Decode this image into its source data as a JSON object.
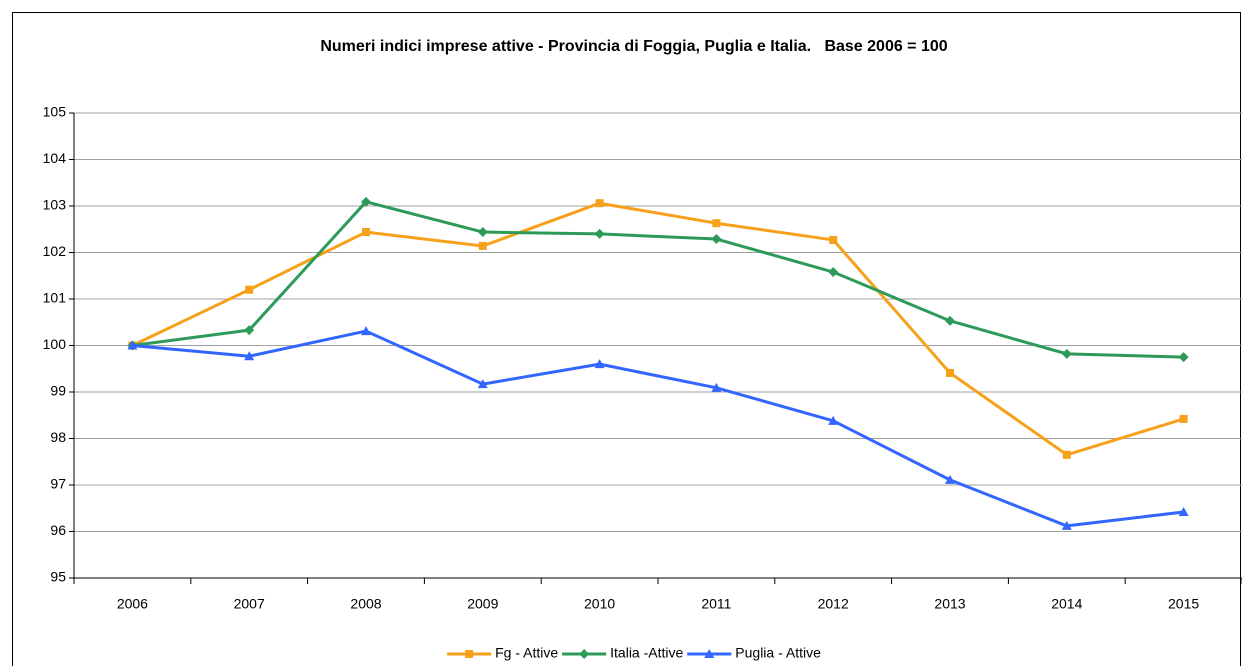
{
  "chart_data": {
    "type": "line",
    "title": "Numeri indici imprese attive - Provincia di Foggia, Puglia e Italia.   Base 2006 = 100",
    "categories": [
      "2006",
      "2007",
      "2008",
      "2009",
      "2010",
      "2011",
      "2012",
      "2013",
      "2014",
      "2015"
    ],
    "series": [
      {
        "name": "Fg - Attive",
        "color": "#f7a11a",
        "marker": "square",
        "values": [
          100,
          101.2,
          102.44,
          102.14,
          103.06,
          102.63,
          102.27,
          99.41,
          97.65,
          98.42
        ]
      },
      {
        "name": "Italia -Attive",
        "color": "#2e9a5a",
        "marker": "diamond",
        "values": [
          100,
          100.33,
          103.09,
          102.44,
          102.4,
          102.29,
          101.58,
          100.53,
          99.82,
          99.75
        ]
      },
      {
        "name": "Puglia - Attive",
        "color": "#3366ff",
        "marker": "triangle",
        "values": [
          100,
          99.77,
          100.31,
          99.17,
          99.6,
          99.09,
          98.38,
          97.11,
          96.12,
          96.42
        ]
      }
    ],
    "ylim": [
      95,
      105
    ],
    "yticks": [
      95,
      96,
      97,
      98,
      99,
      100,
      101,
      102,
      103,
      104,
      105
    ],
    "grid": true,
    "legend": "bottom"
  }
}
